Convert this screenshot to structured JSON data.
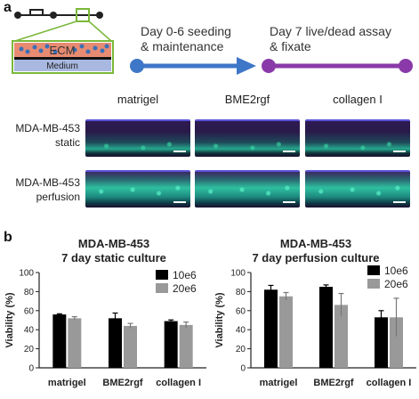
{
  "panel_a": {
    "letter": "a",
    "device": {
      "ecm_label": "ECM",
      "medium_label": "Medium"
    },
    "timeline": {
      "step1": {
        "line1": "Day 0-6 seeding",
        "line2": "& maintenance",
        "color": "#3f77c8"
      },
      "step2": {
        "line1": "Day 7 live/dead assay",
        "line2": "& fixate",
        "color": "#8a3aa8"
      }
    },
    "columns": [
      "matrigel",
      "BME2rgf",
      "collagen I"
    ],
    "rows": [
      {
        "line1": "MDA-MB-453",
        "line2": "static"
      },
      {
        "line1": "MDA-MB-453",
        "line2": "perfusion"
      }
    ]
  },
  "panel_b": {
    "letter": "b",
    "charts": [
      {
        "title_line1": "MDA-MB-453",
        "title_line2": "7 day static culture"
      },
      {
        "title_line1": "MDA-MB-453",
        "title_line2": "7 day perfusion culture"
      }
    ]
  },
  "chart_data": [
    {
      "type": "bar",
      "title": "MDA-MB-453 7 day static culture",
      "categories": [
        "matrigel",
        "BME2rgf",
        "collagen I"
      ],
      "ylabel": "Viability (%)",
      "ylim": [
        0,
        100
      ],
      "yticks": [
        "0",
        "20",
        "40",
        "60",
        "80",
        "100"
      ],
      "legend_placement": "top-right",
      "series": [
        {
          "name": "10e6",
          "color": "#000000",
          "values": [
            56,
            52,
            49
          ],
          "errors": [
            0.7,
            5.5,
            1.3
          ]
        },
        {
          "name": "20e6",
          "color": "#999999",
          "values": [
            52,
            44,
            45
          ],
          "errors": [
            1.7,
            2.6,
            3.0
          ]
        }
      ]
    },
    {
      "type": "bar",
      "title": "MDA-MB-453 7 day perfusion culture",
      "categories": [
        "matrigel",
        "BME2rgf",
        "collagen I"
      ],
      "ylabel": "Viability (%)",
      "ylim": [
        0,
        100
      ],
      "yticks": [
        "0",
        "20",
        "40",
        "60",
        "80",
        "100"
      ],
      "legend_placement": "top-right",
      "series": [
        {
          "name": "10e6",
          "color": "#000000",
          "values": [
            82,
            85,
            53
          ],
          "errors": [
            4.5,
            2.0,
            7.0
          ]
        },
        {
          "name": "20e6",
          "color": "#999999",
          "values": [
            75,
            66,
            53
          ],
          "errors": [
            4.0,
            12.0,
            20.0
          ]
        }
      ]
    }
  ]
}
